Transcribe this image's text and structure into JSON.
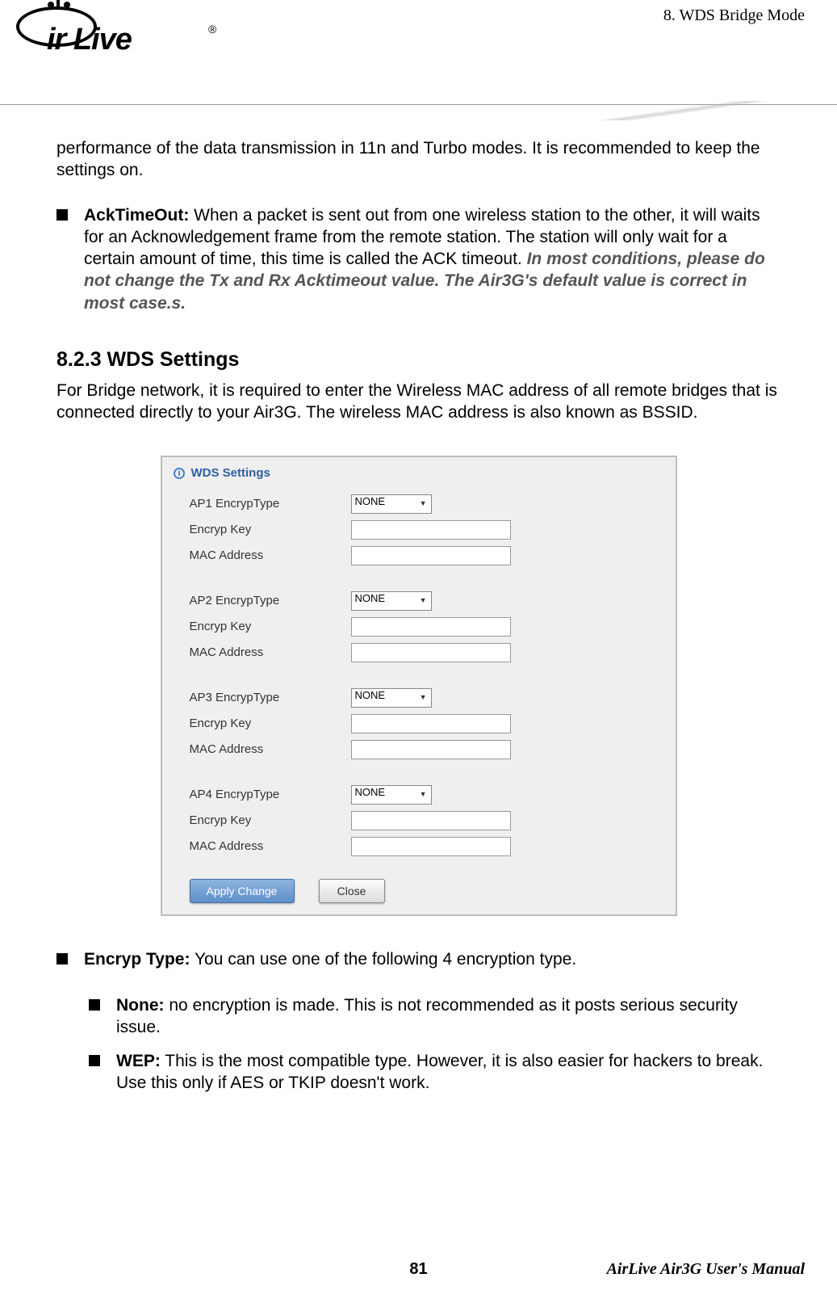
{
  "header": {
    "logo_text": "ir Live",
    "chapter": "8. WDS Bridge Mode"
  },
  "intro_para": "performance of the data transmission in 11n and Turbo modes.   It is recommended to keep the settings on.",
  "acktimeout": {
    "label": "AckTimeOut:",
    "text": "   When a packet is sent out from one wireless station to the other, it will waits for an Acknowledgement frame from the remote station.   The station will only wait for a certain amount of time, this time is called the ACK timeout.   ",
    "italic": "In most conditions, please do not change the Tx and Rx Acktimeout value.   The Air3G's default value is correct in most case.s."
  },
  "section": {
    "number": "8.2.3 WDS Settings",
    "intro": "For Bridge network, it is required to enter the Wireless MAC address of all remote bridges that is connected directly to your Air3G.   The wireless MAC address is also known as BSSID."
  },
  "panel": {
    "title": "WDS Settings",
    "groups": [
      {
        "encryp_label": "AP1 EncrypType",
        "key_label": "Encryp Key",
        "mac_label": "MAC Address",
        "select_value": "NONE"
      },
      {
        "encryp_label": "AP2 EncrypType",
        "key_label": "Encryp Key",
        "mac_label": "MAC Address",
        "select_value": "NONE"
      },
      {
        "encryp_label": "AP3 EncrypType",
        "key_label": "Encryp Key",
        "mac_label": "MAC Address",
        "select_value": "NONE"
      },
      {
        "encryp_label": "AP4 EncrypType",
        "key_label": "Encryp Key",
        "mac_label": "MAC Address",
        "select_value": "NONE"
      }
    ],
    "apply_btn": "Apply Change",
    "close_btn": "Close"
  },
  "encryp_section": {
    "label": "Encryp Type:",
    "text": " You can use one of the following 4 encryption type.",
    "items": [
      {
        "label": "None:",
        "text": " no encryption is made.   This is not recommended as it posts serious security issue."
      },
      {
        "label": "WEP:",
        "text": " This is the most compatible type.   However, it is also easier for hackers to break.   Use this only if AES or TKIP doesn't work."
      }
    ]
  },
  "footer": {
    "page": "81",
    "manual": "AirLive Air3G User's Manual"
  }
}
